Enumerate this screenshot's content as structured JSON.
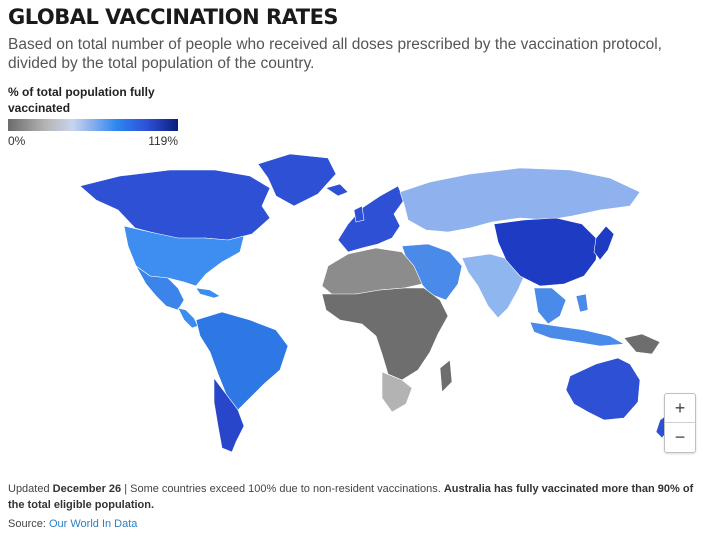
{
  "header": {
    "title": "GLOBAL VACCINATION RATES",
    "subtitle": "Based on total number of people who received all doses prescribed by the vaccination protocol, divided by the total population of the country."
  },
  "legend": {
    "title": "% of total population fully vaccinated",
    "min_label": "0%",
    "max_label": "119%",
    "colors": [
      "#6b6b6b",
      "#b4b4b4",
      "#c8d4ee",
      "#7aa8ee",
      "#2d86ef",
      "#2e4fd6",
      "#0a1f7a"
    ]
  },
  "map": {
    "region_colors": {
      "ocean": "#ffffff",
      "north_america_north": "#2e50d4",
      "greenland": "#2e50d4",
      "usa": "#3d8ef0",
      "mexico": "#3b84ea",
      "central_america": "#3b8ef0",
      "south_america": "#2e78e6",
      "chile_argentina": "#2746c9",
      "western_europe": "#2e50d4",
      "russia": "#8fb2ef",
      "china": "#1e3bc4",
      "japan_korea": "#1e3bc4",
      "south_asia": "#8fb6ef",
      "southeast_asia": "#4a8ae8",
      "middle_east": "#4a8ae8",
      "north_africa": "#8c8c8c",
      "sub_saharan_africa": "#6e6e6e",
      "southern_africa": "#b3b3b3",
      "australia": "#2e50d4",
      "new_zealand": "#2e50d4",
      "papua_new_guinea": "#6e6e6e"
    }
  },
  "zoom": {
    "in_label": "+",
    "out_label": "−"
  },
  "footnote": {
    "prefix": "Updated ",
    "date": "December 26",
    "middle": " | Some countries exceed 100% due to non-resident vaccinations. ",
    "emphasis": "Australia has fully vaccinated more than 90% of the total eligible population."
  },
  "source": {
    "label": "Source: ",
    "link_text": "Our World In Data"
  }
}
